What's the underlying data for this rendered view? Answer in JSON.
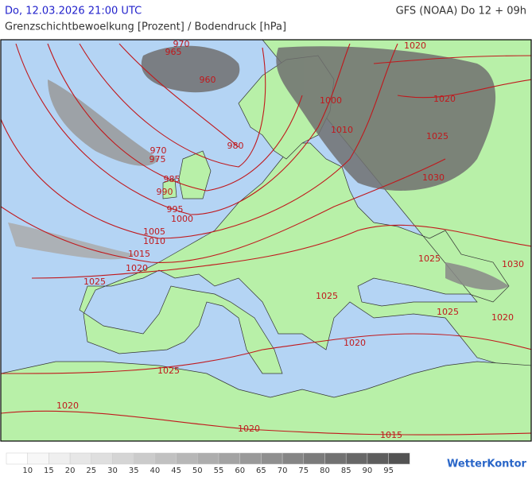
{
  "header": {
    "datetime": "Do, 12.03.2026 21:00 UTC",
    "model": "GFS (NOAA) Do 12 + 09h",
    "subtitle": "Grenzschichtbewoelkung [Prozent] / Bodendruck [hPa]"
  },
  "isobar_labels": [
    970,
    965,
    960,
    1000,
    1010,
    980,
    970,
    975,
    985,
    990,
    995,
    1000,
    1005,
    1010,
    1015,
    1020,
    1025,
    1020,
    1020,
    1025,
    1030,
    1025,
    1030,
    1025,
    1025,
    1020,
    1020,
    1025,
    1020,
    1020,
    1015
  ],
  "legend": {
    "ticks": [
      10,
      15,
      20,
      25,
      30,
      35,
      40,
      45,
      50,
      55,
      60,
      65,
      70,
      75,
      80,
      85,
      90,
      95
    ],
    "colors": [
      "#ffffff",
      "#f7f7f7",
      "#efefef",
      "#e7e7e7",
      "#dfdfdf",
      "#d5d5d5",
      "#cbcbcb",
      "#c1c1c1",
      "#b7b7b7",
      "#adadad",
      "#a3a3a3",
      "#999999",
      "#8f8f8f",
      "#858585",
      "#7b7b7b",
      "#717171",
      "#676767",
      "#5d5d5d",
      "#535353"
    ]
  },
  "brand": "WetterKontor"
}
